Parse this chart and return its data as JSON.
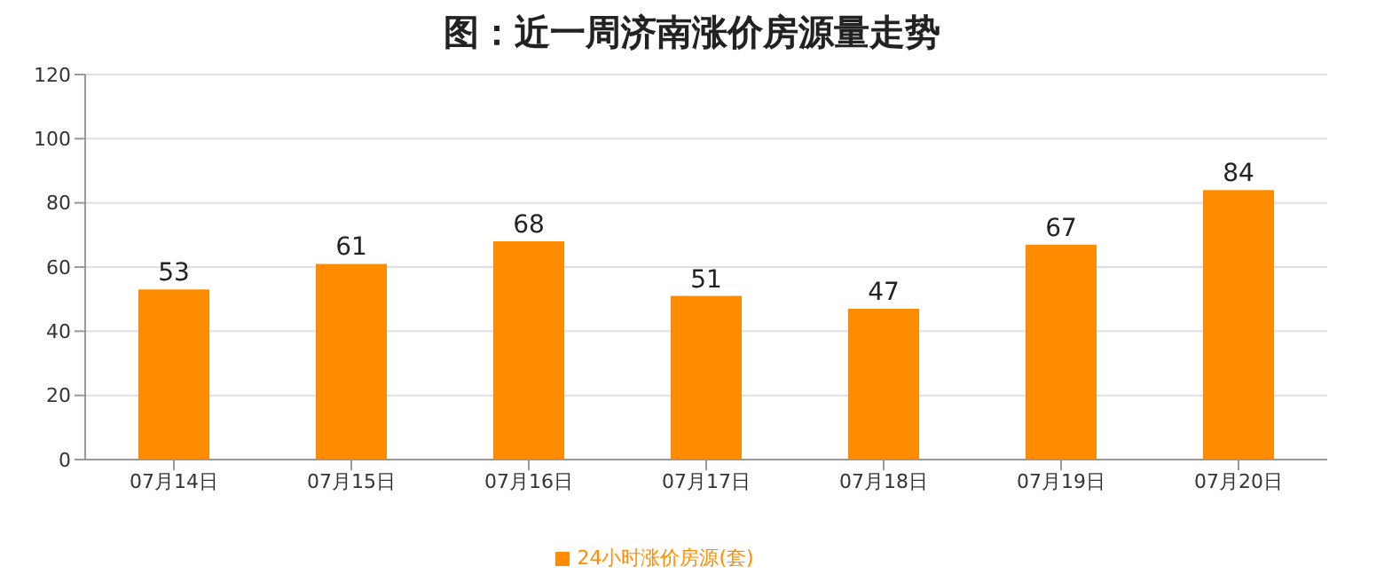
{
  "chart_data": {
    "type": "bar",
    "title": "图：近一周济南涨价房源量走势",
    "categories": [
      "07月14日",
      "07月15日",
      "07月16日",
      "07月17日",
      "07月18日",
      "07月19日",
      "07月20日"
    ],
    "series": [
      {
        "name": "24小时涨价房源(套)",
        "color": "#ff8c00",
        "values": [
          53,
          61,
          68,
          51,
          47,
          67,
          84
        ]
      }
    ],
    "ylim": [
      0,
      120
    ],
    "yticks": [
      0,
      20,
      40,
      60,
      80,
      100,
      120
    ],
    "grid": "y",
    "legend": "bottom",
    "data_labels": true
  }
}
